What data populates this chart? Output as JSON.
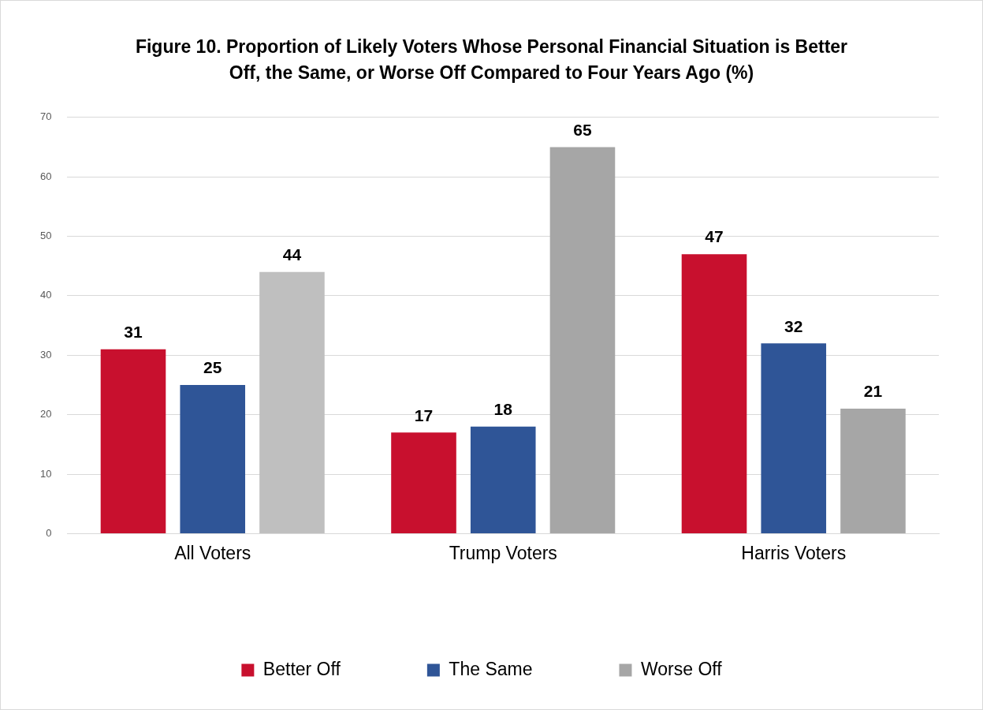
{
  "chart_data": {
    "type": "bar",
    "title": "Figure 10. Proportion of Likely Voters Whose Personal Financial Situation is Better Off, the Same, or Worse Off Compared to Four Years Ago (%)",
    "categories": [
      "All Voters",
      "Trump Voters",
      "Harris Voters"
    ],
    "series": [
      {
        "name": "Better Off",
        "color": "#c8102e",
        "values": [
          31,
          17,
          47
        ]
      },
      {
        "name": "The Same",
        "color": "#2f5597",
        "values": [
          25,
          18,
          32
        ]
      },
      {
        "name": "Worse Off",
        "color": "#a6a6a6",
        "colors": [
          "#bfbfbf",
          "#a6a6a6",
          "#a6a6a6"
        ],
        "values": [
          44,
          65,
          21
        ]
      }
    ],
    "ylim": [
      0,
      70
    ],
    "yticks": [
      0,
      10,
      20,
      30,
      40,
      50,
      60,
      70
    ],
    "grid": "y",
    "legend": "bottom",
    "data_labels": true
  }
}
